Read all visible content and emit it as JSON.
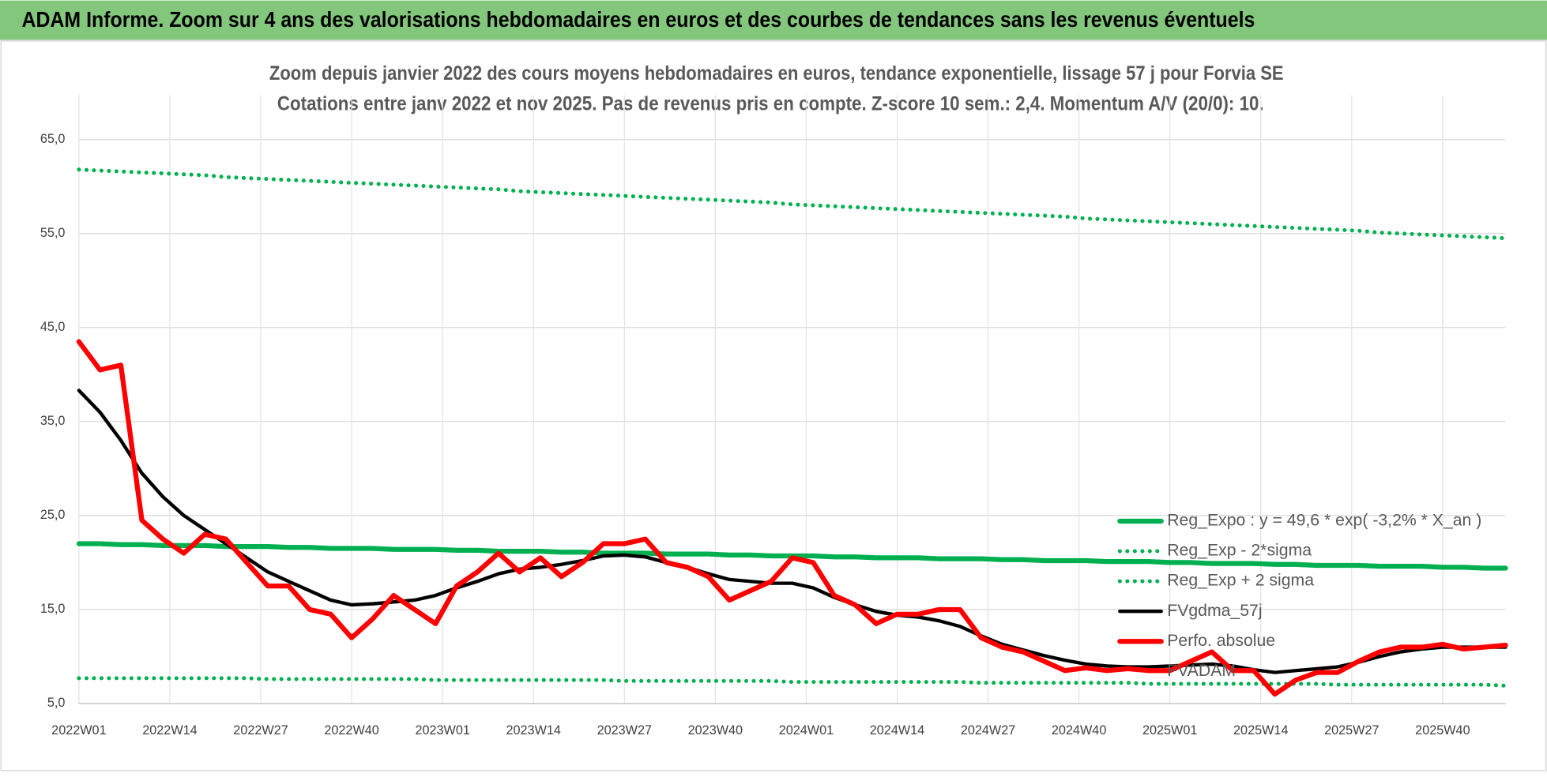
{
  "header": {
    "title": "ADAM Informe. Zoom sur 4 ans des valorisations hebdomadaires en euros et des courbes de tendances sans les revenus éventuels"
  },
  "chart_data": {
    "type": "line",
    "title": "Zoom depuis janvier 2022 des cours moyens hebdomadaires en euros, tendance exponentielle, lissage 57 j pour Forvia SE",
    "subtitle": "Cotations entre janv 2022 et nov 2025. Pas de revenus pris en compte. Z-score 10 sem.: 2,4. Momentum A/V (20/0): 10.",
    "x": [
      0,
      3,
      6,
      9,
      12,
      15,
      18,
      21,
      24,
      27,
      30,
      33,
      36,
      39,
      42,
      45,
      48,
      51,
      54,
      57,
      60,
      63,
      66,
      69,
      72,
      75,
      78,
      81,
      84,
      87,
      90,
      93,
      96,
      99,
      102,
      105,
      108,
      111,
      114,
      117,
      120,
      123,
      126,
      129,
      132,
      135,
      138,
      141,
      144,
      147,
      150,
      153,
      156,
      159,
      162,
      165,
      168,
      171,
      174,
      177,
      180,
      183,
      186,
      189,
      192,
      195,
      198,
      201,
      204
    ],
    "xlim": [
      0,
      204
    ],
    "xticks": [
      {
        "value": 0,
        "label": "2022W01"
      },
      {
        "value": 13,
        "label": "2022W14"
      },
      {
        "value": 26,
        "label": "2022W27"
      },
      {
        "value": 39,
        "label": "2022W40"
      },
      {
        "value": 52,
        "label": "2023W01"
      },
      {
        "value": 65,
        "label": "2023W14"
      },
      {
        "value": 78,
        "label": "2023W27"
      },
      {
        "value": 91,
        "label": "2023W40"
      },
      {
        "value": 104,
        "label": "2024W01"
      },
      {
        "value": 117,
        "label": "2024W14"
      },
      {
        "value": 130,
        "label": "2024W27"
      },
      {
        "value": 143,
        "label": "2024W40"
      },
      {
        "value": 156,
        "label": "2025W01"
      },
      {
        "value": 169,
        "label": "2025W14"
      },
      {
        "value": 182,
        "label": "2025W27"
      },
      {
        "value": 195,
        "label": "2025W40"
      }
    ],
    "ylim": [
      5,
      65
    ],
    "yticks": [
      {
        "value": 5,
        "label": "5,0"
      },
      {
        "value": 15,
        "label": "15,0"
      },
      {
        "value": 25,
        "label": "25,0"
      },
      {
        "value": 35,
        "label": "35,0"
      },
      {
        "value": 45,
        "label": "45,0"
      },
      {
        "value": 55,
        "label": "55,0"
      },
      {
        "value": 65,
        "label": "65,0"
      }
    ],
    "grid": true,
    "legend": "lower right",
    "series": [
      {
        "name": "Reg_Expo : y = 49,6 * exp( -3,2% *  X_an )",
        "color": "#00b050",
        "dash": false,
        "width": 5,
        "values": [
          22.0,
          22.0,
          21.9,
          21.9,
          21.8,
          21.8,
          21.8,
          21.7,
          21.7,
          21.7,
          21.6,
          21.6,
          21.5,
          21.5,
          21.5,
          21.4,
          21.4,
          21.4,
          21.3,
          21.3,
          21.2,
          21.2,
          21.2,
          21.1,
          21.1,
          21.0,
          21.0,
          21.0,
          20.9,
          20.9,
          20.9,
          20.8,
          20.8,
          20.7,
          20.7,
          20.7,
          20.6,
          20.6,
          20.5,
          20.5,
          20.5,
          20.4,
          20.4,
          20.4,
          20.3,
          20.3,
          20.2,
          20.2,
          20.2,
          20.1,
          20.1,
          20.1,
          20.0,
          20.0,
          19.9,
          19.9,
          19.9,
          19.8,
          19.8,
          19.7,
          19.7,
          19.7,
          19.6,
          19.6,
          19.6,
          19.5,
          19.5,
          19.4,
          19.4
        ]
      },
      {
        "name": "Reg_Exp - 2*sigma",
        "color": "#00b050",
        "dash": true,
        "width": 4,
        "values": [
          7.7,
          7.7,
          7.7,
          7.7,
          7.7,
          7.7,
          7.7,
          7.7,
          7.7,
          7.6,
          7.6,
          7.6,
          7.6,
          7.6,
          7.6,
          7.6,
          7.6,
          7.5,
          7.5,
          7.5,
          7.5,
          7.5,
          7.5,
          7.5,
          7.5,
          7.5,
          7.4,
          7.4,
          7.4,
          7.4,
          7.4,
          7.4,
          7.4,
          7.4,
          7.3,
          7.3,
          7.3,
          7.3,
          7.3,
          7.3,
          7.3,
          7.3,
          7.3,
          7.2,
          7.2,
          7.2,
          7.2,
          7.2,
          7.2,
          7.2,
          7.2,
          7.1,
          7.1,
          7.1,
          7.1,
          7.1,
          7.1,
          7.1,
          7.1,
          7.1,
          7.0,
          7.0,
          7.0,
          7.0,
          7.0,
          7.0,
          7.0,
          7.0,
          6.9
        ]
      },
      {
        "name": "Reg_Exp + 2 sigma",
        "color": "#00b050",
        "dash": true,
        "width": 4,
        "values": [
          61.8,
          61.7,
          61.6,
          61.5,
          61.4,
          61.3,
          61.2,
          61.0,
          60.9,
          60.8,
          60.7,
          60.6,
          60.5,
          60.4,
          60.3,
          60.2,
          60.1,
          60.0,
          59.9,
          59.8,
          59.7,
          59.5,
          59.4,
          59.3,
          59.2,
          59.1,
          59.0,
          58.9,
          58.8,
          58.7,
          58.6,
          58.5,
          58.4,
          58.3,
          58.1,
          58.0,
          57.9,
          57.8,
          57.7,
          57.6,
          57.5,
          57.4,
          57.3,
          57.2,
          57.1,
          57.0,
          56.9,
          56.8,
          56.6,
          56.5,
          56.4,
          56.3,
          56.2,
          56.1,
          56.0,
          55.9,
          55.8,
          55.7,
          55.6,
          55.5,
          55.4,
          55.3,
          55.1,
          55.0,
          54.9,
          54.8,
          54.7,
          54.6,
          54.5
        ]
      },
      {
        "name": "FVgdma_57j",
        "color": "#000000",
        "dash": false,
        "width": 3.5,
        "values": [
          38.3,
          36,
          33,
          29.5,
          27,
          25,
          23.5,
          22,
          20.5,
          19,
          18,
          17,
          16,
          15.5,
          15.6,
          15.8,
          16,
          16.5,
          17.3,
          18,
          18.8,
          19.3,
          19.5,
          19.8,
          20.2,
          20.7,
          20.8,
          20.6,
          20,
          19.5,
          18.8,
          18.2,
          18,
          17.8,
          17.8,
          17.3,
          16.3,
          15.5,
          14.8,
          14.4,
          14.2,
          13.8,
          13.2,
          12.2,
          11.3,
          10.7,
          10.1,
          9.6,
          9.2,
          9.0,
          8.9,
          8.9,
          9.0,
          9.1,
          9.2,
          9.0,
          8.6,
          8.3,
          8.5,
          8.7,
          8.9,
          9.4,
          10,
          10.5,
          10.8,
          11,
          11,
          11,
          11
        ]
      },
      {
        "name": "Perfo. absolue",
        "color": "#ff0000",
        "dash": false,
        "width": 5,
        "values": [
          43.5,
          40.5,
          41,
          24.5,
          22.5,
          21,
          23,
          22.5,
          20,
          17.5,
          17.5,
          15,
          14.5,
          12,
          14,
          16.5,
          15,
          13.5,
          17.5,
          19,
          21,
          19,
          20.5,
          18.5,
          20,
          22,
          22,
          22.5,
          20,
          19.5,
          18.5,
          16,
          17,
          18,
          20.5,
          20,
          16.5,
          15.5,
          13.5,
          14.5,
          14.5,
          15,
          15,
          12,
          11,
          10.5,
          9.5,
          8.5,
          8.8,
          8.5,
          8.7,
          8.5,
          8.5,
          9.5,
          10.5,
          8.5,
          8.5,
          6,
          7.5,
          8.3,
          8.3,
          9.5,
          10.5,
          11,
          11,
          11.3,
          10.8,
          11,
          11.2
        ]
      },
      {
        "name": "FVADAM"
      }
    ]
  }
}
